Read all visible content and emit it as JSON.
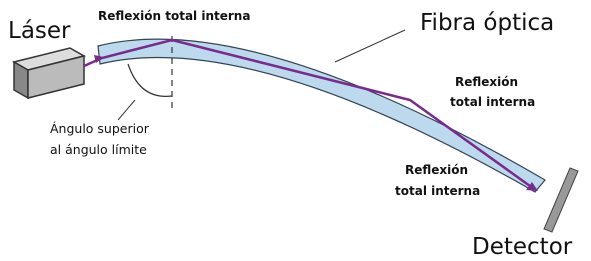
{
  "labels": {
    "laser": "Láser",
    "fiber": "Fibra óptica",
    "detector": "Detector",
    "reflection_top": "Reflexión total interna",
    "reflection_right": [
      "Reflexión",
      "total interna"
    ],
    "reflection_bottom": [
      "Reflexión",
      "total interna"
    ],
    "angle": [
      "Ángulo superior",
      "al ángulo límite"
    ]
  }
}
